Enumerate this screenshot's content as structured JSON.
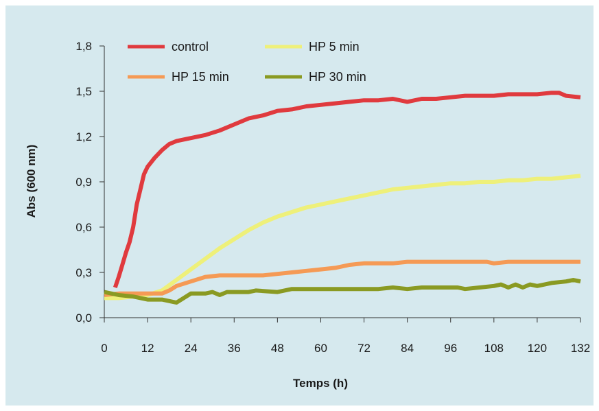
{
  "chart_data": {
    "type": "line",
    "title": "",
    "xlabel": "Temps (h)",
    "ylabel": "Abs (600 nm)",
    "xlim": [
      0,
      132
    ],
    "ylim": [
      0,
      1.8
    ],
    "xticks": [
      "0",
      "12",
      "24",
      "36",
      "48",
      "60",
      "72",
      "84",
      "96",
      "108",
      "120",
      "132"
    ],
    "yticks": [
      "0,0",
      "0,3",
      "0,6",
      "0,9",
      "1,2",
      "1,5",
      "1,8"
    ],
    "grid": false,
    "legend_position": "top",
    "series": [
      {
        "name": "control",
        "color": "#e03a3e",
        "x": [
          3,
          4,
          5,
          6,
          7,
          8,
          9,
          10,
          11,
          12,
          14,
          16,
          18,
          20,
          24,
          28,
          32,
          36,
          40,
          44,
          48,
          52,
          56,
          60,
          64,
          68,
          72,
          76,
          80,
          84,
          88,
          92,
          96,
          100,
          104,
          108,
          112,
          116,
          120,
          124,
          126,
          128,
          132
        ],
        "y": [
          0.2,
          0.27,
          0.35,
          0.43,
          0.5,
          0.6,
          0.75,
          0.85,
          0.95,
          1.0,
          1.06,
          1.11,
          1.15,
          1.17,
          1.19,
          1.21,
          1.24,
          1.28,
          1.32,
          1.34,
          1.37,
          1.38,
          1.4,
          1.41,
          1.42,
          1.43,
          1.44,
          1.44,
          1.45,
          1.43,
          1.45,
          1.45,
          1.46,
          1.47,
          1.47,
          1.47,
          1.48,
          1.48,
          1.48,
          1.49,
          1.49,
          1.47,
          1.46
        ]
      },
      {
        "name": "HP 5 min",
        "color": "#eef07a",
        "x": [
          0,
          4,
          8,
          12,
          16,
          20,
          24,
          28,
          32,
          36,
          40,
          44,
          48,
          52,
          56,
          60,
          64,
          68,
          72,
          76,
          80,
          84,
          88,
          92,
          96,
          100,
          104,
          108,
          112,
          116,
          120,
          124,
          128,
          132
        ],
        "y": [
          0.13,
          0.13,
          0.14,
          0.15,
          0.18,
          0.25,
          0.32,
          0.39,
          0.46,
          0.52,
          0.58,
          0.63,
          0.67,
          0.7,
          0.73,
          0.75,
          0.77,
          0.79,
          0.81,
          0.83,
          0.85,
          0.86,
          0.87,
          0.88,
          0.89,
          0.89,
          0.9,
          0.9,
          0.91,
          0.91,
          0.92,
          0.92,
          0.93,
          0.94
        ]
      },
      {
        "name": "HP 15 min",
        "color": "#f59a55",
        "x": [
          0,
          4,
          8,
          12,
          16,
          18,
          20,
          24,
          28,
          32,
          36,
          40,
          44,
          48,
          52,
          56,
          60,
          64,
          68,
          72,
          76,
          80,
          84,
          88,
          92,
          96,
          100,
          104,
          106,
          108,
          112,
          116,
          120,
          124,
          128,
          132
        ],
        "y": [
          0.15,
          0.16,
          0.16,
          0.16,
          0.16,
          0.18,
          0.21,
          0.24,
          0.27,
          0.28,
          0.28,
          0.28,
          0.28,
          0.29,
          0.3,
          0.31,
          0.32,
          0.33,
          0.35,
          0.36,
          0.36,
          0.36,
          0.37,
          0.37,
          0.37,
          0.37,
          0.37,
          0.37,
          0.37,
          0.36,
          0.37,
          0.37,
          0.37,
          0.37,
          0.37,
          0.37
        ]
      },
      {
        "name": "HP 30 min",
        "color": "#8a9a22",
        "x": [
          0,
          4,
          8,
          12,
          16,
          20,
          24,
          28,
          30,
          32,
          34,
          40,
          42,
          48,
          52,
          56,
          60,
          64,
          68,
          72,
          76,
          80,
          84,
          88,
          92,
          96,
          98,
          100,
          104,
          108,
          110,
          112,
          114,
          116,
          118,
          120,
          124,
          128,
          130,
          132
        ],
        "y": [
          0.17,
          0.15,
          0.14,
          0.12,
          0.12,
          0.1,
          0.16,
          0.16,
          0.17,
          0.15,
          0.17,
          0.17,
          0.18,
          0.17,
          0.19,
          0.19,
          0.19,
          0.19,
          0.19,
          0.19,
          0.19,
          0.2,
          0.19,
          0.2,
          0.2,
          0.2,
          0.2,
          0.19,
          0.2,
          0.21,
          0.22,
          0.2,
          0.22,
          0.2,
          0.22,
          0.21,
          0.23,
          0.24,
          0.25,
          0.24
        ]
      }
    ]
  }
}
